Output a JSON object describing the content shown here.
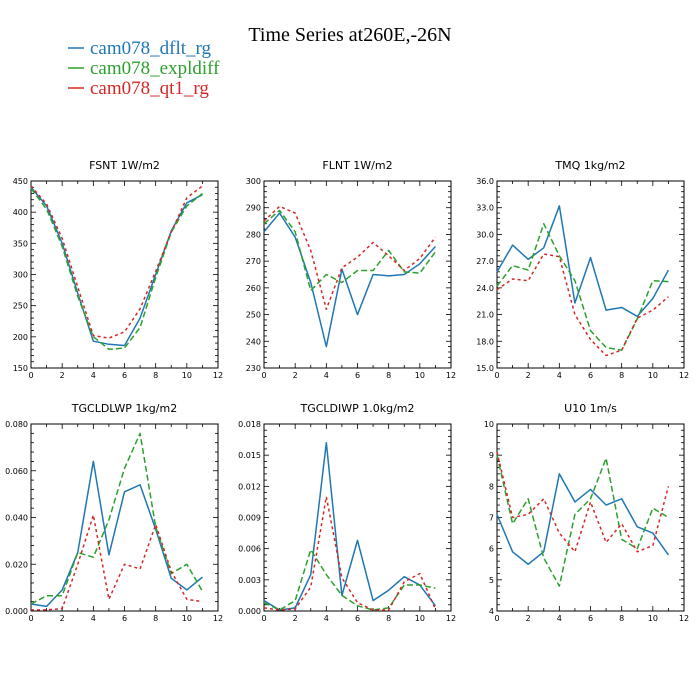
{
  "figure": {
    "title": "Time Series at260E,-26N"
  },
  "legend": [
    {
      "name": "cam078_dflt_rg",
      "color": "#1f77b4",
      "dash": ""
    },
    {
      "name": "cam078_expldiff",
      "color": "#2ca02c",
      "dash": "6,3"
    },
    {
      "name": "cam078_qt1_rg",
      "color": "#d62728",
      "dash": "3,3"
    }
  ],
  "chart_data": [
    {
      "type": "line",
      "title": "FSNT   1W/m2",
      "x": [
        0,
        1,
        2,
        3,
        4,
        5,
        6,
        7,
        8,
        9,
        10,
        11
      ],
      "xlim": [
        0,
        12
      ],
      "xticks": [
        "0",
        "2",
        "4",
        "6",
        "8",
        "10",
        "12"
      ],
      "ylim": [
        150,
        450
      ],
      "yticks": [
        "150",
        "200",
        "250",
        "300",
        "350",
        "400",
        "450"
      ],
      "series": [
        {
          "name": "cam078_dflt_rg",
          "values": [
            440,
            410,
            350,
            270,
            193,
            188,
            186,
            230,
            300,
            370,
            415,
            428
          ]
        },
        {
          "name": "cam078_expldiff",
          "values": [
            438,
            405,
            345,
            265,
            200,
            180,
            182,
            215,
            295,
            368,
            410,
            430
          ]
        },
        {
          "name": "cam078_qt1_rg",
          "values": [
            442,
            413,
            358,
            280,
            202,
            198,
            208,
            245,
            305,
            368,
            423,
            442
          ]
        }
      ]
    },
    {
      "type": "line",
      "title": "FLNT   1W/m2",
      "x": [
        0,
        1,
        2,
        3,
        4,
        5,
        6,
        7,
        8,
        9,
        10,
        11
      ],
      "xlim": [
        0,
        12
      ],
      "xticks": [
        "0",
        "2",
        "4",
        "6",
        "8",
        "10",
        "12"
      ],
      "ylim": [
        230,
        300
      ],
      "yticks": [
        "230",
        "240",
        "250",
        "260",
        "270",
        "280",
        "290",
        "300"
      ],
      "series": [
        {
          "name": "cam078_dflt_rg",
          "values": [
            281,
            288,
            279,
            262,
            238,
            267,
            250,
            265,
            264.5,
            265,
            269,
            275.5
          ]
        },
        {
          "name": "cam078_expldiff",
          "values": [
            284,
            289,
            281,
            259,
            265,
            262,
            266.5,
            266.5,
            274,
            266,
            265.5,
            273.5
          ]
        },
        {
          "name": "cam078_qt1_rg",
          "values": [
            285,
            290.5,
            288,
            274,
            252,
            267.5,
            271.5,
            277,
            272,
            266.5,
            271,
            279
          ]
        }
      ]
    },
    {
      "type": "line",
      "title": "TMQ   1kg/m2",
      "x": [
        0,
        1,
        2,
        3,
        4,
        5,
        6,
        7,
        8,
        9,
        10,
        11
      ],
      "xlim": [
        0,
        12
      ],
      "xticks": [
        "0",
        "2",
        "4",
        "6",
        "8",
        "10",
        "12"
      ],
      "ylim": [
        15,
        36
      ],
      "yticks": [
        "15.0",
        "18.0",
        "21.0",
        "24.0",
        "27.0",
        "30.0",
        "33.0",
        "36.0"
      ],
      "series": [
        {
          "name": "cam078_dflt_rg",
          "values": [
            25.8,
            28.8,
            27.2,
            28.5,
            33.2,
            22.3,
            27.4,
            21.5,
            21.8,
            20.8,
            22.8,
            26.0
          ]
        },
        {
          "name": "cam078_expldiff",
          "values": [
            24.2,
            26.5,
            26.0,
            31.2,
            27.6,
            24.8,
            19.2,
            17.3,
            17.0,
            20.5,
            24.8,
            24.7
          ]
        },
        {
          "name": "cam078_qt1_rg",
          "values": [
            23.8,
            25.0,
            24.8,
            27.8,
            27.5,
            21.0,
            18.2,
            16.4,
            17.0,
            20.6,
            21.5,
            23.0
          ]
        }
      ]
    },
    {
      "type": "line",
      "title": "TGCLDLWP   1kg/m2",
      "x": [
        0,
        1,
        2,
        3,
        4,
        5,
        6,
        7,
        8,
        9,
        10,
        11
      ],
      "xlim": [
        0,
        12
      ],
      "xticks": [
        "0",
        "2",
        "4",
        "6",
        "8",
        "10",
        "12"
      ],
      "ylim": [
        0,
        0.08
      ],
      "yticks": [
        "0.000",
        "0.020",
        "0.040",
        "0.060",
        "0.080"
      ],
      "series": [
        {
          "name": "cam078_dflt_rg",
          "values": [
            0.003,
            0.002,
            0.009,
            0.025,
            0.064,
            0.024,
            0.051,
            0.054,
            0.035,
            0.014,
            0.009,
            0.0145
          ]
        },
        {
          "name": "cam078_expldiff",
          "values": [
            0.003,
            0.0065,
            0.0065,
            0.025,
            0.023,
            0.039,
            0.061,
            0.076,
            0.036,
            0.016,
            0.02,
            0.0085
          ]
        },
        {
          "name": "cam078_qt1_rg",
          "values": [
            0.0005,
            0.0005,
            0.001,
            0.02,
            0.041,
            0.005,
            0.02,
            0.018,
            0.037,
            0.017,
            0.005,
            0.004
          ]
        }
      ]
    },
    {
      "type": "line",
      "title": "TGCLDIWP   1.0kg/m2",
      "x": [
        0,
        1,
        2,
        3,
        4,
        5,
        6,
        7,
        8,
        9,
        10,
        11
      ],
      "xlim": [
        0,
        12
      ],
      "xticks": [
        "0",
        "2",
        "4",
        "6",
        "8",
        "10",
        "12"
      ],
      "ylim": [
        0,
        0.018
      ],
      "yticks": [
        "0.000",
        "0.003",
        "0.006",
        "0.009",
        "0.012",
        "0.015",
        "0.018"
      ],
      "series": [
        {
          "name": "cam078_dflt_rg",
          "values": [
            0.001,
            0.0001,
            0.0003,
            0.0035,
            0.0162,
            0.0015,
            0.0068,
            0.001,
            0.002,
            0.0033,
            0.0025,
            0.0005
          ]
        },
        {
          "name": "cam078_expldiff",
          "values": [
            0.0008,
            0.0001,
            0.001,
            0.0059,
            0.0035,
            0.0015,
            0.0005,
            0.0001,
            0.0003,
            0.0025,
            0.0025,
            0.0022
          ]
        },
        {
          "name": "cam078_qt1_rg",
          "values": [
            0.0003,
            0.0001,
            0.0002,
            0.0023,
            0.011,
            0.0032,
            0.0008,
            0.0001,
            0.0001,
            0.0028,
            0.0036,
            0.0002
          ]
        }
      ]
    },
    {
      "type": "line",
      "title": "U10   1m/s",
      "x": [
        0,
        1,
        2,
        3,
        4,
        5,
        6,
        7,
        8,
        9,
        10,
        11
      ],
      "xlim": [
        0,
        12
      ],
      "xticks": [
        "0",
        "2",
        "4",
        "6",
        "8",
        "10",
        "12"
      ],
      "ylim": [
        4,
        10
      ],
      "yticks": [
        "4",
        "5",
        "6",
        "7",
        "8",
        "9",
        "10"
      ],
      "series": [
        {
          "name": "cam078_dflt_rg",
          "values": [
            7.1,
            5.9,
            5.5,
            5.9,
            8.4,
            7.5,
            7.9,
            7.4,
            7.6,
            6.7,
            6.5,
            5.8
          ]
        },
        {
          "name": "cam078_expldiff",
          "values": [
            9.0,
            6.8,
            7.6,
            5.7,
            4.8,
            7.1,
            7.6,
            8.9,
            6.3,
            6.0,
            7.3,
            7.0
          ]
        },
        {
          "name": "cam078_qt1_rg",
          "values": [
            9.1,
            7.0,
            7.1,
            7.6,
            6.5,
            5.9,
            7.5,
            6.2,
            6.8,
            5.9,
            6.1,
            8.0
          ]
        }
      ]
    }
  ]
}
